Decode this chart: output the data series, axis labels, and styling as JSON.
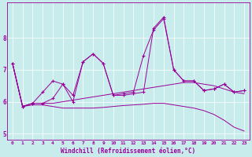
{
  "xlabel": "Windchill (Refroidissement éolien,°C)",
  "bg_color": "#c8ecec",
  "line_color": "#990099",
  "xlim": [
    -0.5,
    23.5
  ],
  "ylim": [
    4.8,
    9.1
  ],
  "xticks": [
    0,
    1,
    2,
    3,
    4,
    5,
    6,
    7,
    8,
    9,
    10,
    11,
    12,
    13,
    14,
    15,
    16,
    17,
    18,
    19,
    20,
    21,
    22,
    23
  ],
  "yticks": [
    5,
    6,
    7,
    8
  ],
  "series": [
    {
      "y": [
        7.2,
        5.85,
        5.95,
        5.95,
        6.1,
        6.55,
        6.0,
        7.25,
        7.5,
        7.2,
        6.2,
        6.2,
        6.25,
        6.3,
        8.3,
        8.65,
        7.0,
        6.65,
        6.65,
        6.35,
        6.4,
        6.55,
        6.3,
        6.35
      ],
      "marker": true
    },
    {
      "y": [
        7.2,
        5.85,
        5.95,
        6.3,
        6.65,
        6.55,
        6.2,
        7.25,
        7.5,
        7.2,
        6.2,
        6.25,
        6.3,
        7.45,
        8.25,
        8.6,
        7.0,
        6.65,
        6.65,
        6.35,
        6.4,
        6.55,
        6.3,
        6.35
      ],
      "marker": true
    },
    {
      "y": [
        7.2,
        5.85,
        5.95,
        5.95,
        5.95,
        6.0,
        6.05,
        6.1,
        6.15,
        6.2,
        6.25,
        6.3,
        6.35,
        6.4,
        6.45,
        6.5,
        6.55,
        6.6,
        6.6,
        6.55,
        6.5,
        6.4,
        6.3,
        6.25
      ],
      "marker": false
    },
    {
      "y": [
        7.2,
        5.85,
        5.9,
        5.9,
        5.85,
        5.8,
        5.8,
        5.8,
        5.8,
        5.82,
        5.85,
        5.88,
        5.9,
        5.92,
        5.95,
        5.95,
        5.9,
        5.85,
        5.8,
        5.72,
        5.6,
        5.42,
        5.2,
        5.08
      ],
      "marker": false
    }
  ]
}
